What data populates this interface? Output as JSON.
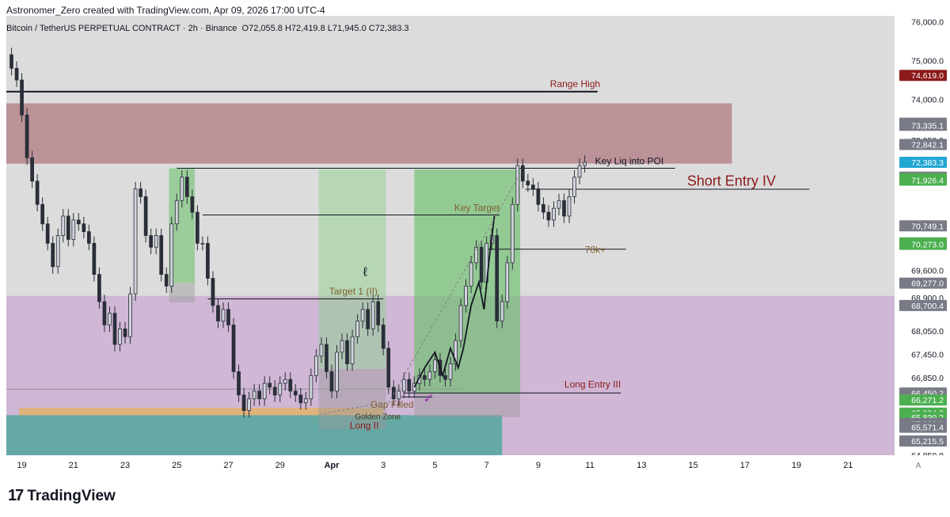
{
  "header": {
    "caption": "Astronomer_Zero created with TradingView.com, Apr 09, 2026 17:00 UTC-4"
  },
  "legend": {
    "symbol": "Bitcoin / TetherUS PERPETUAL CONTRACT · 2h · Binance",
    "ohlc": "O72,055.8  H72,419.8  L71,945.0  C72,383.3"
  },
  "footer": {
    "brand": "TradingView",
    "brand_mark": "17"
  },
  "chart_data": {
    "type": "candlestick",
    "title": "Bitcoin / TetherUS PERPETUAL CONTRACT · 2h · Binance",
    "ylim": [
      64850,
      76150
    ],
    "xlim": [
      18.4,
      52.8
    ],
    "x_axis_labels": [
      {
        "x": 19,
        "label": "19"
      },
      {
        "x": 21,
        "label": "21"
      },
      {
        "x": 23,
        "label": "23"
      },
      {
        "x": 25,
        "label": "25"
      },
      {
        "x": 27,
        "label": "27"
      },
      {
        "x": 29,
        "label": "29"
      },
      {
        "x": 31,
        "label": "Apr"
      },
      {
        "x": 33,
        "label": "3"
      },
      {
        "x": 35,
        "label": "5"
      },
      {
        "x": 37,
        "label": "7"
      },
      {
        "x": 39,
        "label": "9"
      },
      {
        "x": 41,
        "label": "11"
      },
      {
        "x": 43,
        "label": "13"
      },
      {
        "x": 45,
        "label": "15"
      },
      {
        "x": 47,
        "label": "17"
      },
      {
        "x": 49,
        "label": "19"
      },
      {
        "x": 51,
        "label": "21"
      }
    ],
    "axis_corner_label": "A",
    "y_axis_ticks": [
      {
        "value": 76000,
        "label": "76,000.0"
      },
      {
        "value": 75000,
        "label": "75,000.0"
      },
      {
        "value": 74000,
        "label": "74,000.0"
      },
      {
        "value": 72950,
        "label": "72,950.0"
      },
      {
        "value": 69600,
        "label": "69,600.0"
      },
      {
        "value": 68900,
        "label": "68,900.0"
      },
      {
        "value": 68050,
        "label": "68,050.0"
      },
      {
        "value": 67450,
        "label": "67,450.0"
      },
      {
        "value": 66850,
        "label": "66,850.0"
      },
      {
        "value": 64850,
        "label": "64,850.0"
      }
    ],
    "price_labels": [
      {
        "value": 74619.0,
        "label": "74,619.0",
        "color": "#8b1a1a"
      },
      {
        "value": 73387.5,
        "label": "73,387.5",
        "color": "#787b86"
      },
      {
        "value": 73335.1,
        "label": "73,335.1",
        "color": "#787b86"
      },
      {
        "value": 72842.1,
        "label": "72,842.1",
        "color": "#787b86"
      },
      {
        "value": 72383.3,
        "label": "72,383.3",
        "color": "#22a7d3"
      },
      {
        "value": 72002.8,
        "label": "72,002.8",
        "color": "#787b86"
      },
      {
        "value": 71959.0,
        "label": "71,959.0",
        "color": "#4caf50"
      },
      {
        "value": 71957.9,
        "label": "71,957.9",
        "color": "#4caf50"
      },
      {
        "value": 71926.4,
        "label": "71,926.4",
        "color": "#4caf50"
      },
      {
        "value": 70749.1,
        "label": "70,749.1",
        "color": "#787b86"
      },
      {
        "value": 70311.3,
        "label": "70,311.3",
        "color": "#4caf50"
      },
      {
        "value": 70273.0,
        "label": "70,273.0",
        "color": "#4caf50"
      },
      {
        "value": 69277.0,
        "label": "69,277.0",
        "color": "#787b86"
      },
      {
        "value": 68700.4,
        "label": "68,700.4",
        "color": "#787b86"
      },
      {
        "value": 66450.2,
        "label": "66,450.2",
        "color": "#787b86"
      },
      {
        "value": 66271.2,
        "label": "66,271.2",
        "color": "#4caf50"
      },
      {
        "value": 65934.3,
        "label": "65,934.3",
        "color": "#4caf50"
      },
      {
        "value": 65830.2,
        "label": "65,830.2",
        "color": "#4caf50"
      },
      {
        "value": 65669.1,
        "label": "65,669.1",
        "color": "#787b86"
      },
      {
        "value": 65573.0,
        "label": "65,573.0",
        "color": "#787b86"
      },
      {
        "value": 65571.4,
        "label": "65,571.4",
        "color": "#787b86"
      },
      {
        "value": 65215.5,
        "label": "65,215.5",
        "color": "#787b86"
      }
    ],
    "zones": [
      {
        "name": "supply-zone",
        "x0": 18.4,
        "x1": 46.5,
        "y0": 72350,
        "y1": 73900,
        "color": "#b07a80",
        "opacity": 0.75
      },
      {
        "name": "demand-zone-lavender",
        "x0": 18.4,
        "x1": 52.8,
        "y0": 64850,
        "y1": 68950,
        "color": "#cdb4d4",
        "opacity": 0.95
      },
      {
        "name": "golden-zone",
        "x0": 18.9,
        "x1": 33.0,
        "y0": 65690,
        "y1": 66070,
        "color": "#e3b36a",
        "opacity": 0.85
      },
      {
        "name": "teal-zone",
        "x0": 18.4,
        "x1": 37.6,
        "y0": 64850,
        "y1": 65880,
        "color": "#5fa8a3",
        "opacity": 0.95
      },
      {
        "name": "green-small-zone",
        "x0": 24.7,
        "x1": 25.7,
        "y0": 69280,
        "y1": 72230,
        "color": "#7fc67f",
        "opacity": 0.7
      },
      {
        "name": "gray-small-zone",
        "x0": 24.7,
        "x1": 25.7,
        "y0": 68780,
        "y1": 69280,
        "color": "#a0a0a0",
        "opacity": 0.5
      },
      {
        "name": "long-ii-target-zone",
        "x0": 30.5,
        "x1": 33.1,
        "y0": 67070,
        "y1": 72200,
        "color": "#8fcf8f",
        "opacity": 0.5
      },
      {
        "name": "long-ii-stop-zone",
        "x0": 30.5,
        "x1": 33.1,
        "y0": 65520,
        "y1": 67070,
        "color": "#9a9a9a",
        "opacity": 0.45
      },
      {
        "name": "long-iii-target-zone",
        "x0": 34.2,
        "x1": 38.3,
        "y0": 66450,
        "y1": 72200,
        "color": "#6cc06c",
        "opacity": 0.65
      },
      {
        "name": "long-iii-stop-zone",
        "x0": 34.2,
        "x1": 38.3,
        "y0": 65830,
        "y1": 66450,
        "color": "#9a9a9a",
        "opacity": 0.45
      }
    ],
    "lines": [
      {
        "name": "range-high-line",
        "x0": 18.4,
        "x1": 41.3,
        "y": 74200,
        "color": "#131722",
        "width": 2
      },
      {
        "name": "key-liq-line",
        "x0": 25.0,
        "x1": 44.3,
        "y": 72230,
        "color": "#131722",
        "width": 1
      },
      {
        "name": "short-entry-line",
        "x0": 38.5,
        "x1": 49.5,
        "y": 71690,
        "color": "#131722",
        "width": 1
      },
      {
        "name": "key-target-line",
        "x0": 26.0,
        "x1": 37.5,
        "y": 71030,
        "color": "#131722",
        "width": 1
      },
      {
        "name": "70k-line",
        "x0": 37.0,
        "x1": 42.4,
        "y": 70150,
        "color": "#131722",
        "width": 1
      },
      {
        "name": "target1-line",
        "x0": 26.2,
        "x1": 33.0,
        "y": 68870,
        "color": "#131722",
        "width": 1
      },
      {
        "name": "long-entry-iii-line",
        "x0": 33.8,
        "x1": 42.2,
        "y": 66450,
        "color": "#131722",
        "width": 1
      },
      {
        "name": "gap-filled-line",
        "x0": 33.7,
        "x1": 34.9,
        "y": 66350,
        "color": "#131722",
        "width": 1
      },
      {
        "name": "price-level-gray",
        "x0": 18.4,
        "x1": 36.0,
        "y": 66550,
        "color": "#9a9a9a",
        "width": 1
      }
    ],
    "annotations": [
      {
        "x": 41.4,
        "y": 74320,
        "text": "Range High",
        "color": "#8b1a1a",
        "size": 12,
        "anchor": "end"
      },
      {
        "x": 41.2,
        "y": 72335,
        "text": "Key Liq into POI",
        "color": "#131722",
        "size": 12,
        "anchor": "start"
      },
      {
        "x": 48.2,
        "y": 71780,
        "text": "Short Entry IV",
        "color": "#8b1a1a",
        "size": 18,
        "anchor": "end"
      },
      {
        "x": 37.5,
        "y": 71130,
        "text": "Key Target",
        "color": "#806030",
        "size": 12,
        "anchor": "end"
      },
      {
        "x": 40.8,
        "y": 70050,
        "text": "70k+",
        "color": "#806030",
        "size": 12,
        "anchor": "start"
      },
      {
        "x": 30.9,
        "y": 68980,
        "text": "Target 1 (II)",
        "color": "#806030",
        "size": 12,
        "anchor": "start"
      },
      {
        "x": 42.2,
        "y": 66590,
        "text": "Long Entry III",
        "color": "#8b1a1a",
        "size": 12,
        "anchor": "end"
      },
      {
        "x": 32.5,
        "y": 66070,
        "text": "Gap Filled",
        "color": "#806030",
        "size": 12,
        "anchor": "start"
      },
      {
        "x": 31.9,
        "y": 65780,
        "text": "Golden Zone",
        "color": "#4a3a1a",
        "size": 10,
        "anchor": "start"
      },
      {
        "x": 31.7,
        "y": 65530,
        "text": "Long II",
        "color": "#8b1a1a",
        "size": 12,
        "anchor": "start"
      }
    ],
    "price_path": [
      [
        18.4,
        75150
      ],
      [
        18.6,
        74800
      ],
      [
        18.8,
        74500
      ],
      [
        19.0,
        73600
      ],
      [
        19.2,
        72500
      ],
      [
        19.4,
        71900
      ],
      [
        19.6,
        71300
      ],
      [
        19.8,
        70800
      ],
      [
        20.0,
        70300
      ],
      [
        20.2,
        69700
      ],
      [
        20.4,
        70500
      ],
      [
        20.6,
        71000
      ],
      [
        20.8,
        70400
      ],
      [
        21.0,
        70900
      ],
      [
        21.2,
        70800
      ],
      [
        21.4,
        70600
      ],
      [
        21.6,
        70300
      ],
      [
        21.8,
        69500
      ],
      [
        22.0,
        68800
      ],
      [
        22.2,
        68200
      ],
      [
        22.4,
        68500
      ],
      [
        22.6,
        67700
      ],
      [
        22.8,
        68100
      ],
      [
        23.0,
        67900
      ],
      [
        23.2,
        69000
      ],
      [
        23.4,
        71700
      ],
      [
        23.6,
        71500
      ],
      [
        23.8,
        70500
      ],
      [
        24.0,
        70200
      ],
      [
        24.2,
        70500
      ],
      [
        24.4,
        69500
      ],
      [
        24.6,
        69200
      ],
      [
        24.8,
        70800
      ],
      [
        25.0,
        71400
      ],
      [
        25.2,
        72000
      ],
      [
        25.4,
        71500
      ],
      [
        25.6,
        71100
      ],
      [
        25.8,
        70300
      ],
      [
        26.0,
        70300
      ],
      [
        26.2,
        69400
      ],
      [
        26.4,
        68700
      ],
      [
        26.6,
        68300
      ],
      [
        26.8,
        68600
      ],
      [
        27.0,
        68200
      ],
      [
        27.2,
        67000
      ],
      [
        27.4,
        66400
      ],
      [
        27.6,
        66000
      ],
      [
        27.8,
        66300
      ],
      [
        28.0,
        66500
      ],
      [
        28.2,
        66300
      ],
      [
        28.4,
        66700
      ],
      [
        28.6,
        66600
      ],
      [
        28.8,
        66400
      ],
      [
        29.0,
        66700
      ],
      [
        29.2,
        66800
      ],
      [
        29.4,
        66500
      ],
      [
        29.6,
        66400
      ],
      [
        29.8,
        66200
      ],
      [
        30.0,
        66300
      ],
      [
        30.2,
        66900
      ],
      [
        30.4,
        67400
      ],
      [
        30.6,
        67700
      ],
      [
        30.8,
        67000
      ],
      [
        31.0,
        66500
      ],
      [
        31.2,
        67500
      ],
      [
        31.4,
        67800
      ],
      [
        31.6,
        67200
      ],
      [
        31.8,
        67900
      ],
      [
        32.0,
        68300
      ],
      [
        32.2,
        68600
      ],
      [
        32.4,
        68100
      ],
      [
        32.6,
        68800
      ],
      [
        32.8,
        68200
      ],
      [
        33.0,
        67600
      ],
      [
        33.2,
        66600
      ],
      [
        33.4,
        66300
      ],
      [
        33.6,
        66500
      ],
      [
        33.8,
        66800
      ],
      [
        34.0,
        66500
      ],
      [
        34.2,
        66700
      ],
      [
        34.4,
        66900
      ],
      [
        34.6,
        66800
      ],
      [
        34.8,
        67000
      ],
      [
        35.0,
        67300
      ],
      [
        35.2,
        66900
      ],
      [
        35.4,
        66800
      ],
      [
        35.6,
        67200
      ],
      [
        35.8,
        67800
      ],
      [
        36.0,
        68700
      ],
      [
        36.2,
        69200
      ],
      [
        36.4,
        69800
      ],
      [
        36.6,
        70200
      ],
      [
        36.8,
        69300
      ],
      [
        37.0,
        70300
      ],
      [
        37.2,
        70500
      ],
      [
        37.4,
        68300
      ],
      [
        37.6,
        68800
      ],
      [
        37.8,
        69800
      ],
      [
        38.0,
        71300
      ],
      [
        38.2,
        72300
      ],
      [
        38.4,
        71900
      ],
      [
        38.6,
        71800
      ],
      [
        38.8,
        71700
      ],
      [
        39.0,
        71300
      ],
      [
        39.2,
        71100
      ],
      [
        39.4,
        70900
      ],
      [
        39.6,
        71200
      ],
      [
        39.8,
        71400
      ],
      [
        40.0,
        71000
      ],
      [
        40.2,
        71500
      ],
      [
        40.4,
        72000
      ],
      [
        40.6,
        72300
      ],
      [
        40.8,
        72383
      ]
    ],
    "drawings": [
      {
        "name": "projection-scribble",
        "points": [
          [
            34.2,
            66600
          ],
          [
            34.6,
            67100
          ],
          [
            35.0,
            67500
          ],
          [
            35.3,
            66900
          ],
          [
            35.6,
            67600
          ],
          [
            35.9,
            67100
          ],
          [
            36.1,
            67600
          ],
          [
            36.4,
            68700
          ],
          [
            36.7,
            69300
          ],
          [
            36.9,
            68600
          ],
          [
            37.1,
            69900
          ],
          [
            37.3,
            71000
          ]
        ]
      },
      {
        "name": "projection-dashed",
        "points": [
          [
            33.2,
            66200
          ],
          [
            38.3,
            72100
          ]
        ],
        "dashed": true
      },
      {
        "name": "long-ii-dashed",
        "points": [
          [
            30.5,
            65900
          ],
          [
            33.0,
            66200
          ]
        ],
        "dashed": true
      }
    ],
    "markers": [
      {
        "name": "checkmark",
        "x": 34.75,
        "y": 66200,
        "text": "✓",
        "color": "#9c27b0"
      },
      {
        "name": "circle-scribble",
        "x": 32.3,
        "y": 69460,
        "text": "ℓ",
        "color": "#131722"
      }
    ]
  }
}
